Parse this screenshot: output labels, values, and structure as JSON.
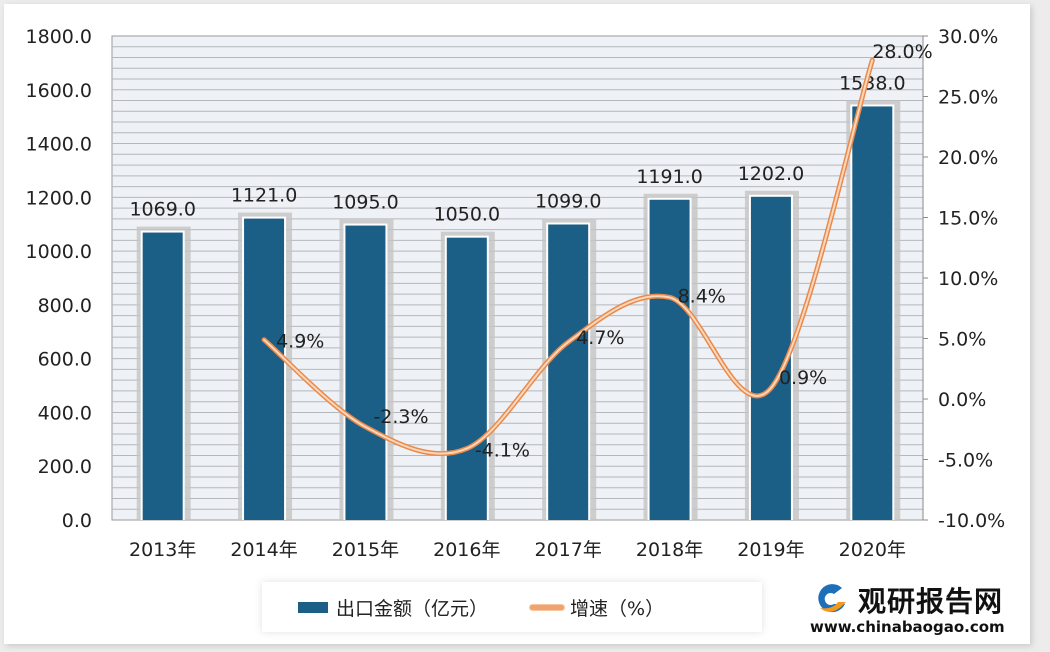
{
  "chart_data": {
    "type": "bar+line",
    "categories": [
      "2013年",
      "2014年",
      "2015年",
      "2016年",
      "2017年",
      "2018年",
      "2019年",
      "2020年"
    ],
    "series": [
      {
        "name": "出口金额（亿元）",
        "type": "bar",
        "axis": "left",
        "values": [
          1069.0,
          1121.0,
          1095.0,
          1050.0,
          1099.0,
          1191.0,
          1202.0,
          1538.0
        ],
        "labels": [
          "1069.0",
          "1121.0",
          "1095.0",
          "1050.0",
          "1099.0",
          "1191.0",
          "1202.0",
          "1538.0"
        ],
        "color": "#1b5f86"
      },
      {
        "name": "增速（%）",
        "type": "line",
        "axis": "right",
        "smooth": true,
        "values": [
          null,
          4.9,
          -2.3,
          -4.1,
          4.7,
          8.4,
          0.9,
          28.0
        ],
        "labels": [
          "",
          "4.9%",
          "-2.3%",
          "-4.1%",
          "4.7%",
          "8.4%",
          "0.9%",
          "28.0%"
        ],
        "color": "#f0a36e"
      }
    ],
    "y_left": {
      "range": [
        0,
        1800
      ],
      "ticks": [
        "0.0",
        "200.0",
        "400.0",
        "600.0",
        "800.0",
        "1000.0",
        "1200.0",
        "1400.0",
        "1600.0",
        "1800.0"
      ]
    },
    "y_right": {
      "range": [
        -10,
        30
      ],
      "ticks": [
        "-10.0%",
        "-5.0%",
        "0.0%",
        "5.0%",
        "10.0%",
        "15.0%",
        "20.0%",
        "25.0%",
        "30.0%"
      ]
    },
    "grid": true,
    "legend": "bottom"
  },
  "watermark": {
    "name": "观研报告网",
    "url": "www.chinabaogao.com"
  }
}
